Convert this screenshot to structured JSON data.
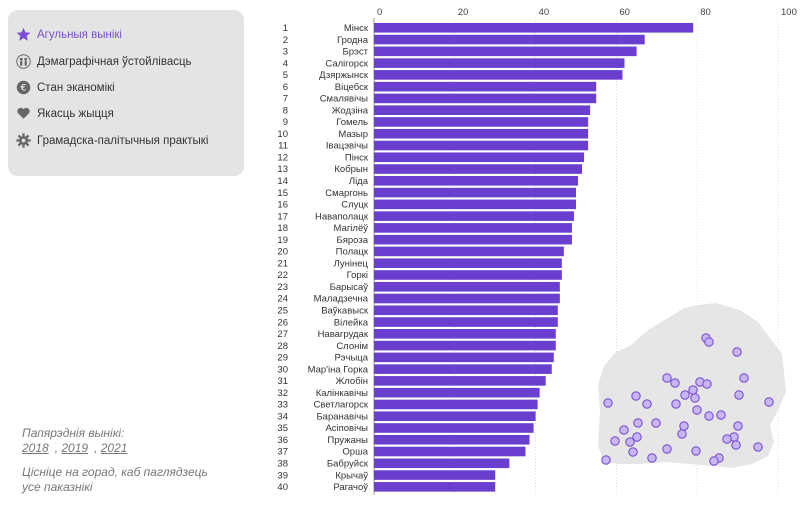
{
  "menu": {
    "items": [
      {
        "label": "Агульныя вынікі",
        "icon": "star-icon",
        "active": true
      },
      {
        "label": "Дэмаграфічная ўстойлівасць",
        "icon": "people-icon",
        "active": false
      },
      {
        "label": "Стан эканомікі",
        "icon": "euro-icon",
        "active": false
      },
      {
        "label": "Якасць жыцця",
        "icon": "heart-icon",
        "active": false
      },
      {
        "label": "Грамадска-палітычныя практыкі",
        "icon": "gear-icon",
        "active": false
      }
    ]
  },
  "notes": {
    "previous_label": "Папярэднія вынікі:",
    "years": [
      "2018",
      "2019",
      "2021"
    ],
    "hint": "Цісніце на горад, каб паглядзець усе паказнікі"
  },
  "colors": {
    "bar": "#6a3fd0",
    "accent": "#7a4fd6",
    "map": "#e6e6e6",
    "dot_fill": "#c8b6f2",
    "dot_stroke": "#7a4fd6"
  },
  "chart_data": {
    "type": "bar",
    "orientation": "horizontal",
    "xlim": [
      0,
      100
    ],
    "ticks": [
      0,
      20,
      40,
      60,
      80,
      100
    ],
    "categories": [
      "Мінск",
      "Гродна",
      "Брэст",
      "Салігорск",
      "Дзяржынск",
      "Віцебск",
      "Смалявічы",
      "Жодзіна",
      "Гомель",
      "Мазыр",
      "Івацэвічы",
      "Пінск",
      "Кобрын",
      "Ліда",
      "Смаргонь",
      "Слуцк",
      "Наваполацк",
      "Магілёў",
      "Бяроза",
      "Полацк",
      "Лунінец",
      "Горкі",
      "Барысаў",
      "Маладзечна",
      "Ваўкавыск",
      "Вілейка",
      "Навагрудак",
      "Слонім",
      "Рэчыца",
      "Мар'іна Горка",
      "Жлобін",
      "Калінкавічы",
      "Светлагорск",
      "Баранавічы",
      "Асіповічы",
      "Пружаны",
      "Орша",
      "Бабруйск",
      "Крычаў",
      "Рагачоў"
    ],
    "ranks": [
      1,
      2,
      3,
      4,
      5,
      6,
      7,
      8,
      9,
      10,
      11,
      12,
      13,
      14,
      15,
      16,
      17,
      18,
      19,
      20,
      21,
      22,
      23,
      24,
      25,
      26,
      27,
      28,
      29,
      30,
      31,
      32,
      33,
      34,
      35,
      36,
      37,
      38,
      39,
      40
    ],
    "values": [
      79,
      67,
      65,
      62,
      61.5,
      55,
      55,
      53.5,
      53,
      53,
      53,
      52,
      51.5,
      50.5,
      50,
      50,
      49.5,
      49,
      49,
      47,
      46.5,
      46.5,
      46,
      46,
      45.5,
      45.5,
      45,
      45,
      44.5,
      44,
      42.5,
      41,
      40.5,
      40,
      39.5,
      38.5,
      37.5,
      33.5,
      30,
      30
    ]
  }
}
